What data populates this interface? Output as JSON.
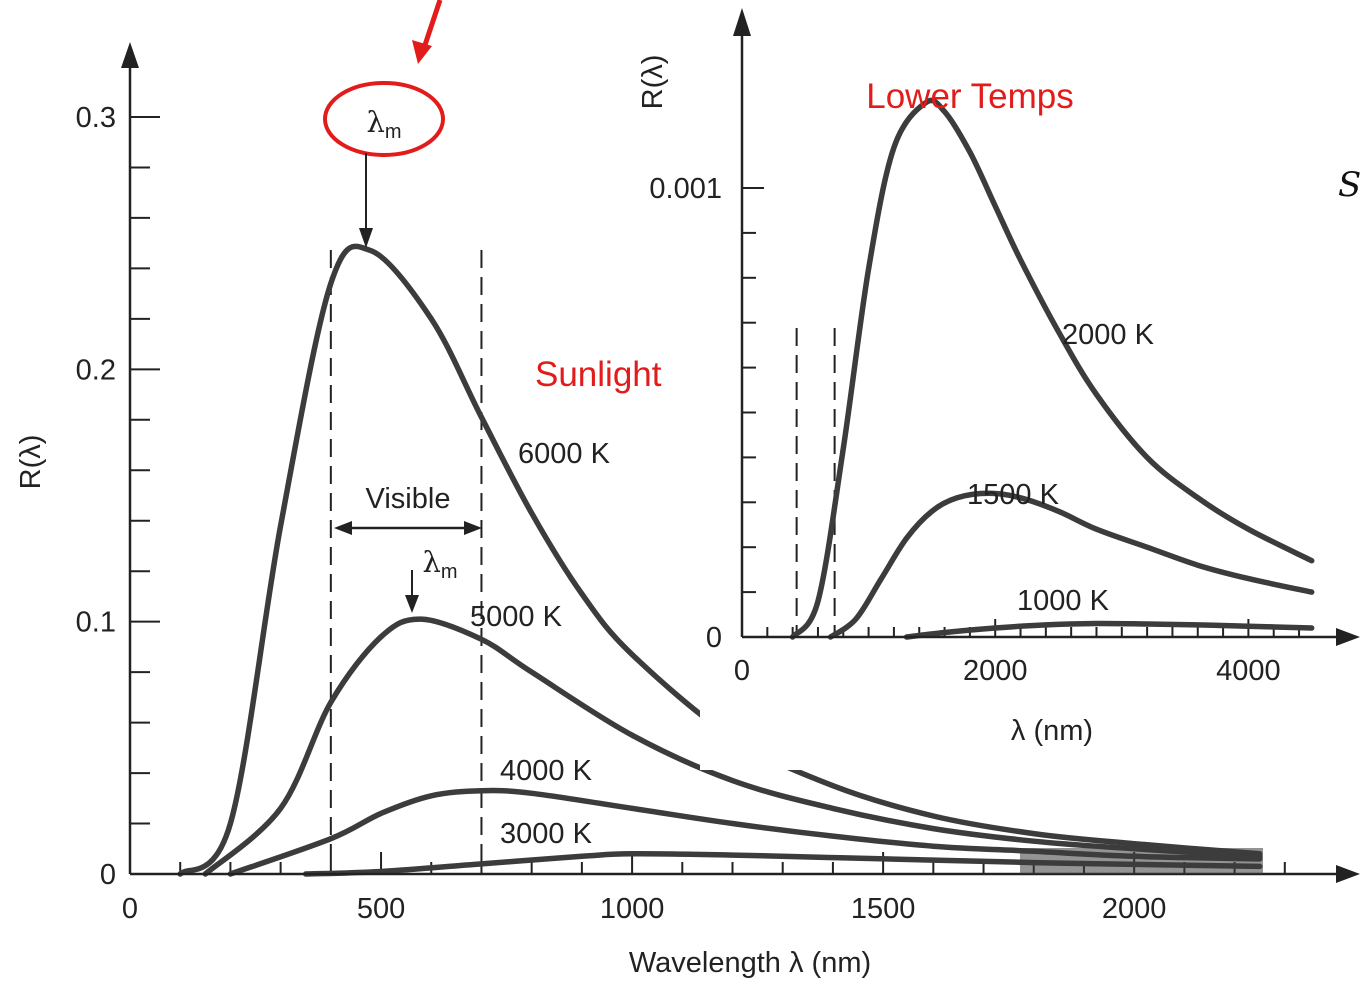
{
  "chart_data": [
    {
      "type": "line",
      "id": "main",
      "title": "",
      "xlabel": "Wavelength λ (nm)",
      "ylabel": "R(λ)",
      "xlim": [
        0,
        2400
      ],
      "ylim": [
        0,
        0.3
      ],
      "x_ticks": [
        "0",
        "500",
        "1000",
        "1500",
        "2000"
      ],
      "y_ticks": [
        "0",
        "0.1",
        "0.2",
        "0.3"
      ],
      "visible_band": [
        400,
        700
      ],
      "visible_label": "Visible",
      "peak_marker": "λm",
      "series": [
        {
          "name": "6000 K",
          "x": [
            100,
            200,
            300,
            400,
            480,
            600,
            700,
            800,
            900,
            1000,
            1200,
            1400,
            1600,
            1800,
            2000,
            2250
          ],
          "y": [
            0.0,
            0.02,
            0.138,
            0.234,
            0.247,
            0.22,
            0.181,
            0.143,
            0.111,
            0.087,
            0.054,
            0.035,
            0.023,
            0.016,
            0.012,
            0.008
          ]
        },
        {
          "name": "5000 K",
          "x": [
            150,
            300,
            400,
            500,
            580,
            700,
            800,
            1000,
            1200,
            1400,
            1600,
            1800,
            2000,
            2250
          ],
          "y": [
            0.0,
            0.026,
            0.068,
            0.094,
            0.101,
            0.093,
            0.08,
            0.055,
            0.037,
            0.026,
            0.018,
            0.013,
            0.01,
            0.007
          ]
        },
        {
          "name": "4000 K",
          "x": [
            200,
            400,
            500,
            600,
            700,
            800,
            1000,
            1200,
            1400,
            1600,
            1800,
            2000,
            2250
          ],
          "y": [
            0.0,
            0.014,
            0.024,
            0.031,
            0.033,
            0.032,
            0.026,
            0.02,
            0.015,
            0.011,
            0.009,
            0.007,
            0.006
          ]
        },
        {
          "name": "3000 K",
          "x": [
            350,
            500,
            700,
            900,
            1000,
            1200,
            1400,
            1600,
            1800,
            2000,
            2250
          ],
          "y": [
            0.0,
            0.001,
            0.004,
            0.007,
            0.008,
            0.0075,
            0.0065,
            0.0055,
            0.0045,
            0.0038,
            0.003
          ]
        }
      ],
      "annotations": [
        "Sunlight"
      ]
    },
    {
      "type": "line",
      "id": "inset",
      "title": "Lower Temps",
      "xlabel": "λ (nm)",
      "ylabel": "R(λ)",
      "xlim": [
        0,
        4800
      ],
      "ylim": [
        0,
        0.0013
      ],
      "x_ticks": [
        "0",
        "2000",
        "4000"
      ],
      "y_ticks": [
        "0",
        "0.001"
      ],
      "visible_band": [
        400,
        700
      ],
      "series": [
        {
          "name": "2000 K",
          "x": [
            400,
            600,
            800,
            1000,
            1200,
            1450,
            1600,
            1800,
            2000,
            2200,
            2500,
            2800,
            3200,
            3600,
            4000,
            4500
          ],
          "y": [
            0.0,
            8e-05,
            0.00042,
            0.00082,
            0.00109,
            0.00119,
            0.00117,
            0.00108,
            0.00096,
            0.00084,
            0.00068,
            0.00054,
            0.0004,
            0.00031,
            0.00024,
            0.00017
          ]
        },
        {
          "name": "1500 K",
          "x": [
            700,
            900,
            1100,
            1300,
            1500,
            1700,
            1950,
            2200,
            2500,
            2800,
            3200,
            3600,
            4000,
            4500
          ],
          "y": [
            0.0,
            4e-05,
            0.00013,
            0.00022,
            0.00028,
            0.00031,
            0.00032,
            0.00031,
            0.00028,
            0.00024,
            0.0002,
            0.00016,
            0.00013,
            0.0001
          ]
        },
        {
          "name": "1000 K",
          "x": [
            1300,
            1600,
            2000,
            2400,
            2800,
            3200,
            3600,
            4000,
            4500
          ],
          "y": [
            0.0,
            1e-05,
            2e-05,
            2.7e-05,
            3e-05,
            2.9e-05,
            2.7e-05,
            2.4e-05,
            2e-05
          ]
        }
      ]
    }
  ],
  "annotations": {
    "sunlight_label": "Sunlight",
    "lower_temps_label": "Lower Temps",
    "visible_label": "Visible",
    "lambda_m_symbol": "λ",
    "lambda_m_subscript": "m",
    "edge_char": "S"
  },
  "colors": {
    "curve": "#3c3c3c",
    "axis": "#222222",
    "highlight": "#e21b1b"
  }
}
